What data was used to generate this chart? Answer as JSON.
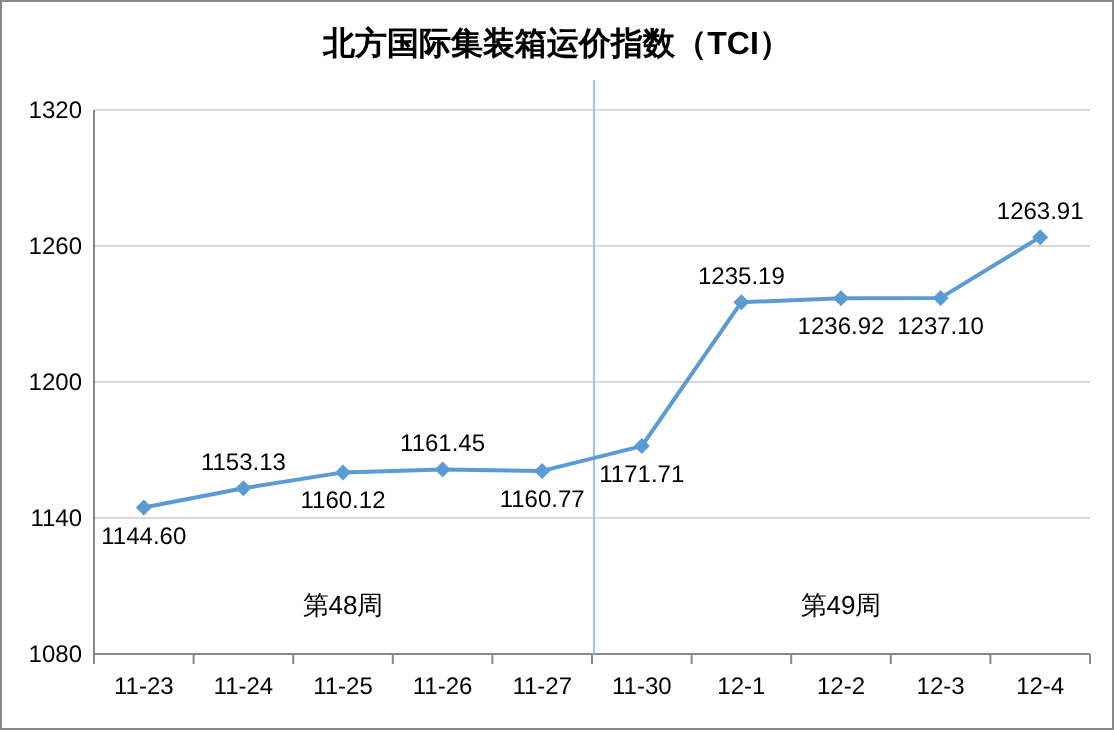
{
  "chart_data": {
    "type": "line",
    "title": "北方国际集装箱运价指数（TCI）",
    "categories": [
      "11-23",
      "11-24",
      "11-25",
      "11-26",
      "11-27",
      "11-30",
      "12-1",
      "12-2",
      "12-3",
      "12-4"
    ],
    "series": [
      {
        "color": "#5b9bd5",
        "values": [
          1144.6,
          1153.13,
          1160.12,
          1161.45,
          1160.77,
          1171.71,
          1235.19,
          1236.92,
          1237.1,
          1263.91
        ],
        "value_labels": [
          "1144.60",
          "1153.13",
          "1160.12",
          "1161.45",
          "1160.77",
          "1171.71",
          "1235.19",
          "1236.92",
          "1237.10",
          "1263.91"
        ]
      }
    ],
    "ylim": [
      1080,
      1320
    ],
    "yticks": [
      1080,
      1140,
      1200,
      1260,
      1320
    ],
    "grid": "y",
    "marker": "diamond",
    "line_style": "solid",
    "ref_lines": [
      {
        "axis": "x",
        "value": "11-30",
        "color": "#9dc3e6"
      }
    ],
    "annotations": [
      "第48周",
      "第49周"
    ]
  }
}
